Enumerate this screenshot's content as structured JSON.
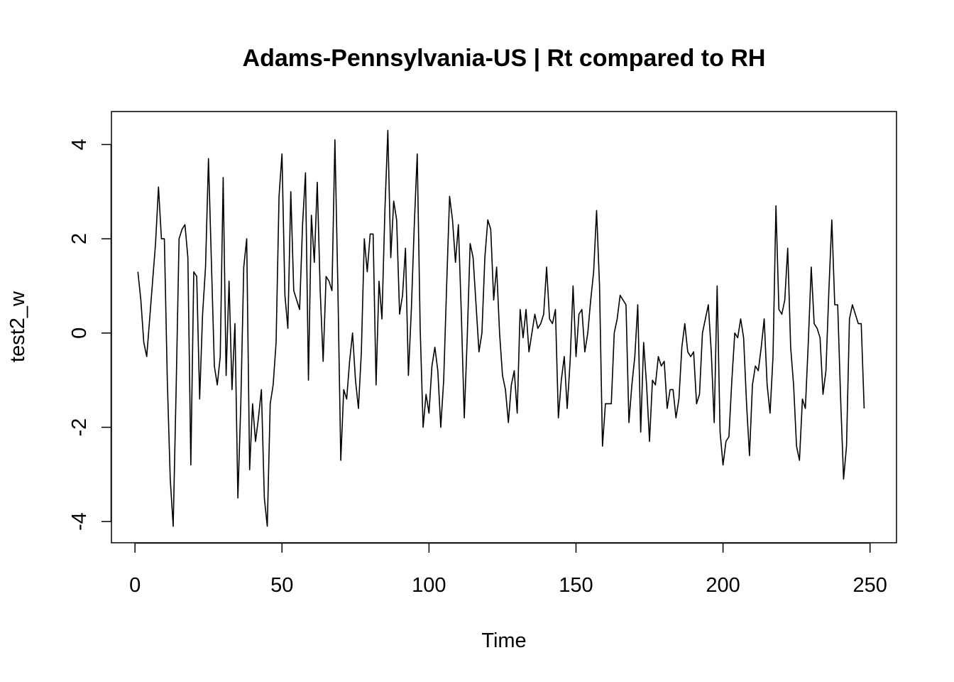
{
  "chart_data": {
    "type": "line",
    "title": "Adams-Pennsylvania-US | Rt compared to RH",
    "xlabel": "Time",
    "ylabel": "test2_w",
    "xlim": [
      -8,
      259
    ],
    "ylim": [
      -4.45,
      4.7
    ],
    "x_ticks": [
      0,
      50,
      100,
      150,
      200,
      250
    ],
    "y_ticks": [
      -4,
      -2,
      0,
      2,
      4
    ],
    "x_start": 1,
    "grid": false,
    "legend": "none",
    "line_color": "#000000",
    "values": [
      1.3,
      0.7,
      -0.2,
      -0.5,
      0.3,
      1.1,
      1.9,
      3.1,
      2.0,
      2.0,
      -1.0,
      -3.1,
      -4.1,
      -1.2,
      2.0,
      2.2,
      2.3,
      1.6,
      -2.8,
      1.3,
      1.2,
      -1.4,
      0.4,
      1.4,
      3.7,
      1.5,
      -0.7,
      -1.1,
      -0.5,
      3.3,
      -0.9,
      1.1,
      -1.2,
      0.2,
      -3.5,
      -1.5,
      1.4,
      2.0,
      -2.9,
      -1.5,
      -2.3,
      -1.8,
      -1.2,
      -3.5,
      -4.1,
      -1.5,
      -1.1,
      -0.2,
      2.9,
      3.8,
      0.8,
      0.1,
      3.0,
      0.9,
      0.7,
      0.5,
      2.3,
      3.4,
      -1.0,
      2.5,
      1.5,
      3.2,
      0.9,
      -0.6,
      1.2,
      1.1,
      0.9,
      4.1,
      1.0,
      -2.7,
      -1.2,
      -1.4,
      -0.6,
      0.0,
      -1.0,
      -1.6,
      -0.4,
      2.0,
      1.3,
      2.1,
      2.1,
      -1.1,
      1.1,
      0.3,
      2.6,
      4.3,
      1.6,
      2.8,
      2.4,
      0.4,
      0.8,
      1.8,
      -0.9,
      0.5,
      2.3,
      3.8,
      0.1,
      -2.0,
      -1.3,
      -1.7,
      -0.7,
      -0.3,
      -0.8,
      -2.0,
      -1.0,
      1.0,
      2.9,
      2.4,
      1.5,
      2.3,
      0.4,
      -1.8,
      -0.1,
      1.9,
      1.6,
      0.6,
      -0.4,
      0.0,
      1.6,
      2.4,
      2.2,
      0.7,
      1.4,
      0.0,
      -0.9,
      -1.2,
      -1.9,
      -1.1,
      -0.8,
      -1.7,
      0.5,
      -0.1,
      0.5,
      -0.4,
      0.0,
      0.4,
      0.1,
      0.2,
      0.4,
      1.4,
      0.3,
      0.2,
      0.5,
      -1.8,
      -1.0,
      -0.5,
      -1.6,
      -0.6,
      1.0,
      -0.5,
      0.4,
      0.5,
      -0.4,
      0.0,
      0.7,
      1.3,
      2.6,
      1.0,
      -2.4,
      -1.5,
      -1.5,
      -1.5,
      0.0,
      0.3,
      0.8,
      0.7,
      0.6,
      -1.9,
      -1.1,
      -0.5,
      0.6,
      -2.1,
      -0.2,
      -1.1,
      -2.3,
      -1.0,
      -1.1,
      -0.5,
      -0.7,
      -0.6,
      -1.6,
      -1.2,
      -1.2,
      -1.8,
      -1.4,
      -0.3,
      0.2,
      -0.4,
      -0.5,
      -0.4,
      -1.5,
      -1.3,
      0.0,
      0.3,
      0.6,
      -0.4,
      -1.9,
      1.0,
      -2.1,
      -2.8,
      -2.3,
      -2.2,
      -1.0,
      0.0,
      -0.1,
      0.3,
      -0.1,
      -1.5,
      -2.6,
      -1.1,
      -0.7,
      -0.8,
      -0.3,
      0.3,
      -1.1,
      -1.7,
      -0.5,
      2.7,
      0.5,
      0.4,
      0.7,
      1.8,
      -0.3,
      -1.1,
      -2.4,
      -2.7,
      -1.4,
      -1.6,
      -0.2,
      1.4,
      0.2,
      0.1,
      -0.1,
      -1.3,
      -0.8,
      0.9,
      2.4,
      0.6,
      0.6,
      -1.4,
      -3.1,
      -2.4,
      0.3,
      0.6,
      0.4,
      0.2,
      0.2,
      -1.6
    ]
  }
}
